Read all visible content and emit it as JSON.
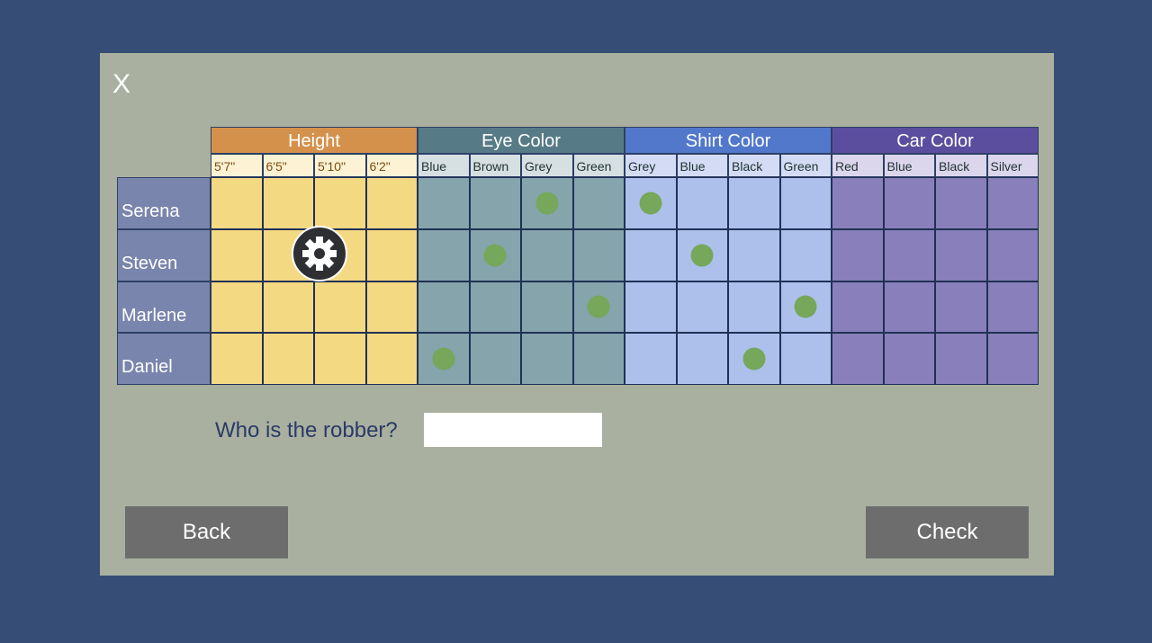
{
  "close_label": "X",
  "categories": [
    {
      "label": "Height",
      "color": "#d4914c",
      "sub_bg": "#fdf3d4",
      "cell_bg": "#f4d983",
      "options": [
        "5'7\"",
        "6'5\"",
        "5'10\"",
        "6'2\""
      ]
    },
    {
      "label": "Eye Color",
      "color": "#577b86",
      "sub_bg": "#d6dfe2",
      "cell_bg": "#85a4ab",
      "options": [
        "Blue",
        "Brown",
        "Grey",
        "Green"
      ]
    },
    {
      "label": "Shirt Color",
      "color": "#5278cc",
      "sub_bg": "#d3dcf4",
      "cell_bg": "#adc0ec",
      "options": [
        "Grey",
        "Blue",
        "Black",
        "Green"
      ]
    },
    {
      "label": "Car Color",
      "color": "#5c4e9e",
      "sub_bg": "#dcd6ec",
      "cell_bg": "#897fbb",
      "options": [
        "Red",
        "Blue",
        "Black",
        "Silver"
      ]
    }
  ],
  "suspects": [
    {
      "name": "Serena",
      "marks": [
        6,
        8
      ]
    },
    {
      "name": "Steven",
      "marks": [
        5,
        9
      ]
    },
    {
      "name": "Marlene",
      "marks": [
        7,
        11
      ]
    },
    {
      "name": "Daniel",
      "marks": [
        4,
        10
      ]
    }
  ],
  "question": "Who is the robber?",
  "answer_value": "",
  "back_label": "Back",
  "check_label": "Check",
  "cursor_icon": "gear-icon"
}
